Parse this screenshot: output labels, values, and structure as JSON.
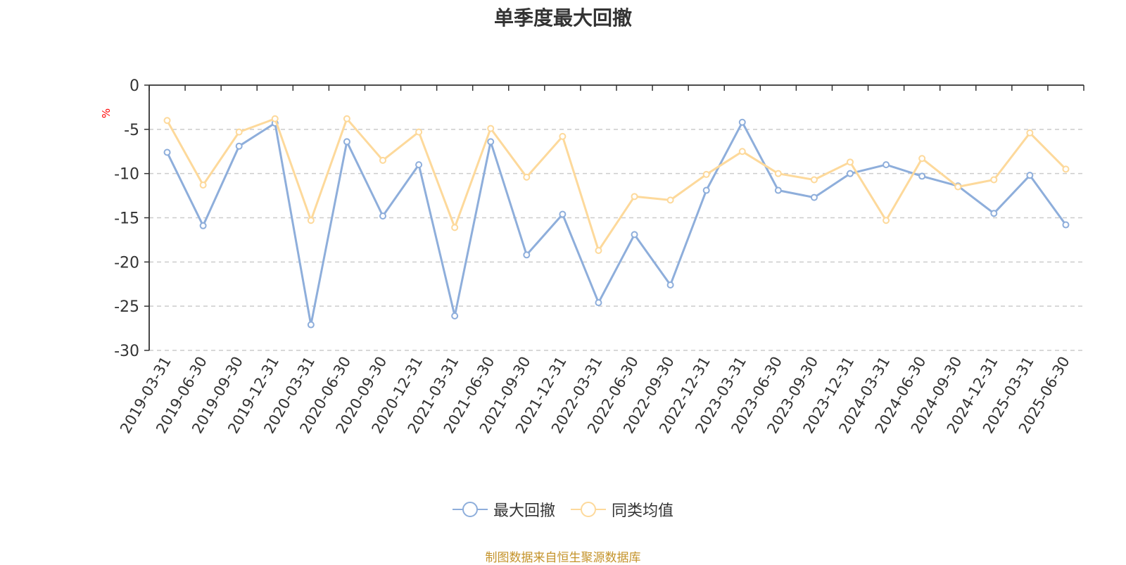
{
  "chart_data": {
    "type": "line",
    "title": "单季度最大回撤",
    "ylabel": "%",
    "xlabel": "",
    "ylim": [
      -30,
      0
    ],
    "yticks": [
      0,
      -5,
      -10,
      -15,
      -20,
      -25,
      -30
    ],
    "grid": "horizontal dashed",
    "legend_position": "bottom-center",
    "categories": [
      "2019-03-31",
      "2019-06-30",
      "2019-09-30",
      "2019-12-31",
      "2020-03-31",
      "2020-06-30",
      "2020-09-30",
      "2020-12-31",
      "2021-03-31",
      "2021-06-30",
      "2021-09-30",
      "2021-12-31",
      "2022-03-31",
      "2022-06-30",
      "2022-09-30",
      "2022-12-31",
      "2023-03-31",
      "2023-06-30",
      "2023-09-30",
      "2023-12-31",
      "2024-03-31",
      "2024-06-30",
      "2024-09-30",
      "2024-12-31",
      "2025-03-31",
      "2025-06-30"
    ],
    "series": [
      {
        "name": "最大回撤",
        "color": "#8eaedb",
        "values": [
          -7.6,
          -15.9,
          -6.9,
          -4.3,
          -27.1,
          -6.4,
          -14.8,
          -9.0,
          -26.1,
          -6.4,
          -19.2,
          -14.6,
          -24.6,
          -16.9,
          -22.6,
          -11.9,
          -4.2,
          -11.9,
          -12.7,
          -10.0,
          -9.0,
          -10.3,
          -11.4,
          -14.5,
          -10.2,
          -15.8
        ]
      },
      {
        "name": "同类均值",
        "color": "#fdd99b",
        "values": [
          -4.0,
          -11.3,
          -5.3,
          -3.8,
          -15.3,
          -3.8,
          -8.5,
          -5.3,
          -16.1,
          -4.9,
          -10.4,
          -5.8,
          -18.7,
          -12.6,
          -13.0,
          -10.1,
          -7.5,
          -10.0,
          -10.7,
          -8.7,
          -15.3,
          -8.3,
          -11.5,
          -10.7,
          -5.4,
          -9.5
        ]
      }
    ]
  },
  "source_note": "制图数据来自恒生聚源数据库",
  "colors": {
    "axis": "#333333",
    "grid": "#cccccc",
    "ylabel": "#ff0000",
    "source": "#c4932a"
  }
}
